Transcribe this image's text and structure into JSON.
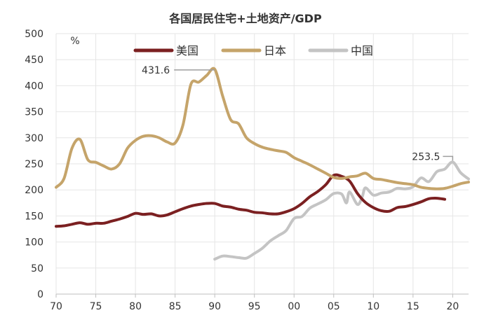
{
  "chart_data": {
    "type": "line",
    "title": "各国居民住宅+土地资产/GDP",
    "unit_label": "%",
    "xlabel": "",
    "ylabel": "",
    "xlim": [
      1970,
      2022
    ],
    "ylim": [
      0,
      500
    ],
    "grid": true,
    "x_ticks": [
      {
        "value": 1970,
        "label": "70"
      },
      {
        "value": 1975,
        "label": "75"
      },
      {
        "value": 1980,
        "label": "80"
      },
      {
        "value": 1985,
        "label": "85"
      },
      {
        "value": 1990,
        "label": "90"
      },
      {
        "value": 1995,
        "label": "95"
      },
      {
        "value": 2000,
        "label": "00"
      },
      {
        "value": 2005,
        "label": "05"
      },
      {
        "value": 2010,
        "label": "10"
      },
      {
        "value": 2015,
        "label": "15"
      },
      {
        "value": 2020,
        "label": "20"
      }
    ],
    "y_ticks": [
      0,
      50,
      100,
      150,
      200,
      250,
      300,
      350,
      400,
      450,
      500
    ],
    "legend_position": "top-center",
    "series": [
      {
        "name": "美国",
        "color": "#7b2021",
        "x": [
          1970,
          1971,
          1972,
          1973,
          1974,
          1975,
          1976,
          1977,
          1978,
          1979,
          1980,
          1981,
          1982,
          1983,
          1984,
          1985,
          1986,
          1987,
          1988,
          1989,
          1990,
          1991,
          1992,
          1993,
          1994,
          1995,
          1996,
          1997,
          1998,
          1999,
          2000,
          2001,
          2002,
          2003,
          2004,
          2005,
          2006,
          2007,
          2008,
          2009,
          2010,
          2011,
          2012,
          2013,
          2014,
          2015,
          2016,
          2017,
          2018,
          2019
        ],
        "values": [
          130,
          131,
          134,
          137,
          134,
          136,
          136,
          140,
          144,
          149,
          155,
          153,
          154,
          150,
          152,
          158,
          164,
          169,
          172,
          174,
          174,
          169,
          167,
          163,
          161,
          157,
          156,
          154,
          154,
          158,
          164,
          174,
          187,
          197,
          210,
          228,
          226,
          217,
          193,
          176,
          166,
          160,
          159,
          166,
          168,
          172,
          177,
          183,
          184,
          182
        ]
      },
      {
        "name": "日本",
        "color": "#c5a46a",
        "x": [
          1970,
          1971,
          1972,
          1973,
          1974,
          1975,
          1976,
          1977,
          1978,
          1979,
          1980,
          1981,
          1982,
          1983,
          1984,
          1985,
          1986,
          1987,
          1988,
          1989,
          1990,
          1991,
          1992,
          1993,
          1994,
          1995,
          1996,
          1997,
          1998,
          1999,
          2000,
          2001,
          2002,
          2003,
          2004,
          2005,
          2006,
          2007,
          2008,
          2009,
          2010,
          2011,
          2012,
          2013,
          2014,
          2015,
          2016,
          2017,
          2018,
          2019,
          2020,
          2021,
          2022
        ],
        "values": [
          205,
          222,
          280,
          297,
          258,
          253,
          246,
          240,
          250,
          280,
          295,
          303,
          304,
          300,
          292,
          290,
          325,
          403,
          407,
          420,
          431.6,
          380,
          335,
          327,
          300,
          289,
          282,
          278,
          275,
          272,
          262,
          255,
          248,
          240,
          232,
          224,
          222,
          225,
          227,
          232,
          222,
          220,
          217,
          214,
          212,
          210,
          205,
          203,
          202,
          203,
          207,
          212,
          215
        ]
      },
      {
        "name": "中国",
        "color": "#c4c4c4",
        "x": [
          1990,
          1991,
          1992,
          1993,
          1994,
          1995,
          1996,
          1997,
          1998,
          1999,
          2000,
          2001,
          2002,
          2003,
          2004,
          2005,
          2006,
          2006.6,
          2007,
          2008,
          2008.6,
          2009,
          2010,
          2011,
          2012,
          2013,
          2014,
          2015,
          2016,
          2017,
          2018,
          2019,
          2020,
          2021,
          2022
        ],
        "values": [
          67,
          73,
          72,
          70,
          69,
          78,
          88,
          102,
          112,
          122,
          145,
          149,
          165,
          173,
          181,
          193,
          192,
          175,
          196,
          172,
          187,
          204,
          190,
          194,
          196,
          203,
          202,
          206,
          223,
          216,
          235,
          240,
          253.5,
          233,
          221
        ]
      }
    ],
    "annotations": [
      {
        "label": "431.6",
        "series": "日本",
        "x": 1990,
        "y": 431.6
      },
      {
        "label": "253.5",
        "series": "中国",
        "x": 2020,
        "y": 253.5
      }
    ]
  }
}
